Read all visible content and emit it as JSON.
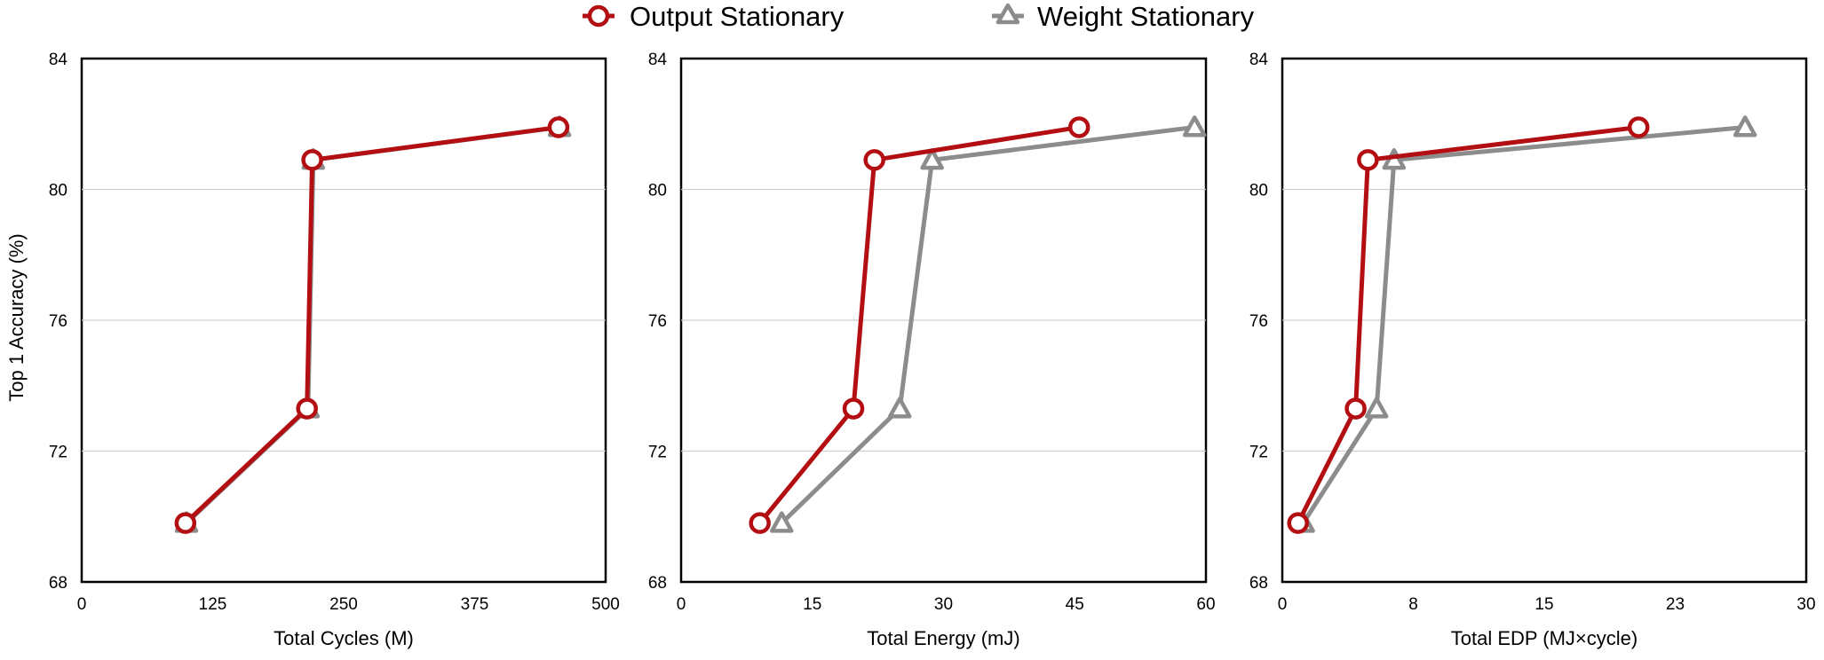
{
  "legend": {
    "placement": "top-center",
    "items": [
      {
        "name": "Output Stationary",
        "color": "#b30f12",
        "marker": "circle-icon"
      },
      {
        "name": "Weight Stationary",
        "color": "#8c8c8c",
        "marker": "triangle-icon"
      }
    ]
  },
  "ylabel": "Top 1 Accuracy (%)",
  "chart_data": [
    {
      "type": "line",
      "title": "",
      "xlabel": "Total Cycles (M)",
      "ylabel": "Top 1 Accuracy (%)",
      "xlim": [
        0,
        500
      ],
      "ylim": [
        68,
        84
      ],
      "xticks": [
        "0",
        "125",
        "250",
        "375",
        "500"
      ],
      "yticks": [
        "68",
        "72",
        "76",
        "80",
        "84"
      ],
      "grid": "horizontal",
      "series": [
        {
          "name": "Output Stationary",
          "color": "#b30f12",
          "marker": "circle",
          "x": [
            99,
            215,
            220,
            455
          ],
          "y": [
            69.8,
            73.3,
            80.9,
            81.9
          ]
        },
        {
          "name": "Weight Stationary",
          "color": "#8c8c8c",
          "marker": "triangle",
          "x": [
            100,
            216,
            221,
            456
          ],
          "y": [
            69.8,
            73.3,
            80.9,
            81.9
          ]
        }
      ]
    },
    {
      "type": "line",
      "title": "",
      "xlabel": "Total Energy (mJ)",
      "ylabel": "",
      "xlim": [
        0,
        60
      ],
      "ylim": [
        68,
        84
      ],
      "xticks": [
        "0",
        "15",
        "30",
        "45",
        "60"
      ],
      "yticks": [
        "68",
        "72",
        "76",
        "80",
        "84"
      ],
      "grid": "horizontal",
      "series": [
        {
          "name": "Output Stationary",
          "color": "#b30f12",
          "marker": "circle",
          "x": [
            9.0,
            19.7,
            22.1,
            45.5
          ],
          "y": [
            69.8,
            73.3,
            80.9,
            81.9
          ]
        },
        {
          "name": "Weight Stationary",
          "color": "#8c8c8c",
          "marker": "triangle",
          "x": [
            11.5,
            25.0,
            28.7,
            58.7
          ],
          "y": [
            69.8,
            73.3,
            80.9,
            81.9
          ]
        }
      ]
    },
    {
      "type": "line",
      "title": "",
      "xlabel": "Total EDP (MJ×cycle)",
      "ylabel": "",
      "xlim": [
        0,
        30
      ],
      "ylim": [
        68,
        84
      ],
      "xticks": [
        "0",
        "8",
        "15",
        "23",
        "30"
      ],
      "yticks": [
        "68",
        "72",
        "76",
        "80",
        "84"
      ],
      "grid": "horizontal",
      "series": [
        {
          "name": "Output Stationary",
          "color": "#b30f12",
          "marker": "circle",
          "x": [
            0.9,
            4.2,
            4.9,
            20.4
          ],
          "y": [
            69.8,
            73.3,
            80.9,
            81.9
          ]
        },
        {
          "name": "Weight Stationary",
          "color": "#8c8c8c",
          "marker": "triangle",
          "x": [
            1.2,
            5.4,
            6.4,
            26.5
          ],
          "y": [
            69.8,
            73.3,
            80.9,
            81.9
          ]
        }
      ]
    }
  ]
}
